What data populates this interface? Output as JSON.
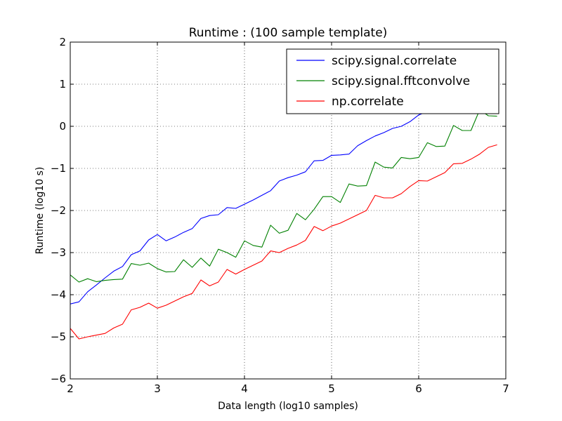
{
  "chart_data": {
    "type": "line",
    "title": "Runtime : (100 sample template)",
    "xlabel": "Data length (log10 samples)",
    "ylabel": "Runtime (log10 s)",
    "xlim": [
      2,
      7
    ],
    "ylim": [
      -6,
      2
    ],
    "xticks": [
      2,
      3,
      4,
      5,
      6,
      7
    ],
    "yticks": [
      -6,
      -5,
      -4,
      -3,
      -2,
      -1,
      0,
      1,
      2
    ],
    "xtick_labels": [
      "2",
      "3",
      "4",
      "5",
      "6",
      "7"
    ],
    "ytick_labels": [
      "−6",
      "−5",
      "−4",
      "−3",
      "−2",
      "−1",
      "0",
      "1",
      "2"
    ],
    "grid": true,
    "legend_position": "top-right",
    "x": [
      2.0,
      2.1,
      2.2,
      2.3,
      2.4,
      2.5,
      2.6,
      2.7,
      2.8,
      2.9,
      3.0,
      3.1,
      3.2,
      3.3,
      3.4,
      3.5,
      3.6,
      3.7,
      3.8,
      3.9,
      4.0,
      4.1,
      4.2,
      4.3,
      4.4,
      4.5,
      4.6,
      4.7,
      4.8,
      4.9,
      5.0,
      5.1,
      5.2,
      5.3,
      5.4,
      5.5,
      5.6,
      5.7,
      5.8,
      5.9,
      6.0,
      6.1,
      6.2,
      6.3,
      6.4,
      6.5,
      6.6,
      6.7,
      6.8,
      6.9
    ],
    "series": [
      {
        "name": "scipy.signal.correlate",
        "color": "#0000ff",
        "values": [
          -4.22,
          -4.17,
          -3.93,
          -3.77,
          -3.6,
          -3.44,
          -3.33,
          -3.05,
          -2.96,
          -2.7,
          -2.57,
          -2.72,
          -2.63,
          -2.52,
          -2.43,
          -2.19,
          -2.12,
          -2.1,
          -1.93,
          -1.95,
          -1.85,
          -1.75,
          -1.64,
          -1.53,
          -1.3,
          -1.22,
          -1.16,
          -1.08,
          -0.82,
          -0.81,
          -0.69,
          -0.68,
          -0.66,
          -0.46,
          -0.34,
          -0.23,
          -0.15,
          -0.05,
          0.0,
          0.11,
          0.27,
          0.35,
          0.42,
          0.5,
          0.58,
          0.66,
          0.74,
          0.82,
          0.9,
          0.98
        ]
      },
      {
        "name": "scipy.signal.fftconvolve",
        "color": "#008000",
        "values": [
          -3.53,
          -3.7,
          -3.62,
          -3.69,
          -3.66,
          -3.64,
          -3.63,
          -3.26,
          -3.3,
          -3.25,
          -3.38,
          -3.46,
          -3.45,
          -3.17,
          -3.35,
          -3.13,
          -3.32,
          -2.92,
          -3.0,
          -3.11,
          -2.72,
          -2.83,
          -2.87,
          -2.35,
          -2.54,
          -2.47,
          -2.07,
          -2.22,
          -1.97,
          -1.67,
          -1.67,
          -1.81,
          -1.37,
          -1.42,
          -1.41,
          -0.85,
          -0.97,
          -0.99,
          -0.74,
          -0.77,
          -0.74,
          -0.39,
          -0.48,
          -0.47,
          0.02,
          -0.1,
          -0.1,
          0.39,
          0.25,
          0.24
        ]
      },
      {
        "name": "np.correlate",
        "color": "#ff0000",
        "values": [
          -4.8,
          -5.05,
          -5.0,
          -4.96,
          -4.92,
          -4.79,
          -4.7,
          -4.36,
          -4.3,
          -4.2,
          -4.32,
          -4.25,
          -4.15,
          -4.05,
          -3.97,
          -3.65,
          -3.79,
          -3.7,
          -3.4,
          -3.51,
          -3.4,
          -3.3,
          -3.2,
          -2.96,
          -3.0,
          -2.9,
          -2.82,
          -2.71,
          -2.38,
          -2.48,
          -2.37,
          -2.3,
          -2.2,
          -2.1,
          -2.0,
          -1.64,
          -1.7,
          -1.7,
          -1.6,
          -1.43,
          -1.29,
          -1.3,
          -1.2,
          -1.1,
          -0.89,
          -0.88,
          -0.78,
          -0.66,
          -0.5,
          -0.44
        ]
      }
    ]
  }
}
